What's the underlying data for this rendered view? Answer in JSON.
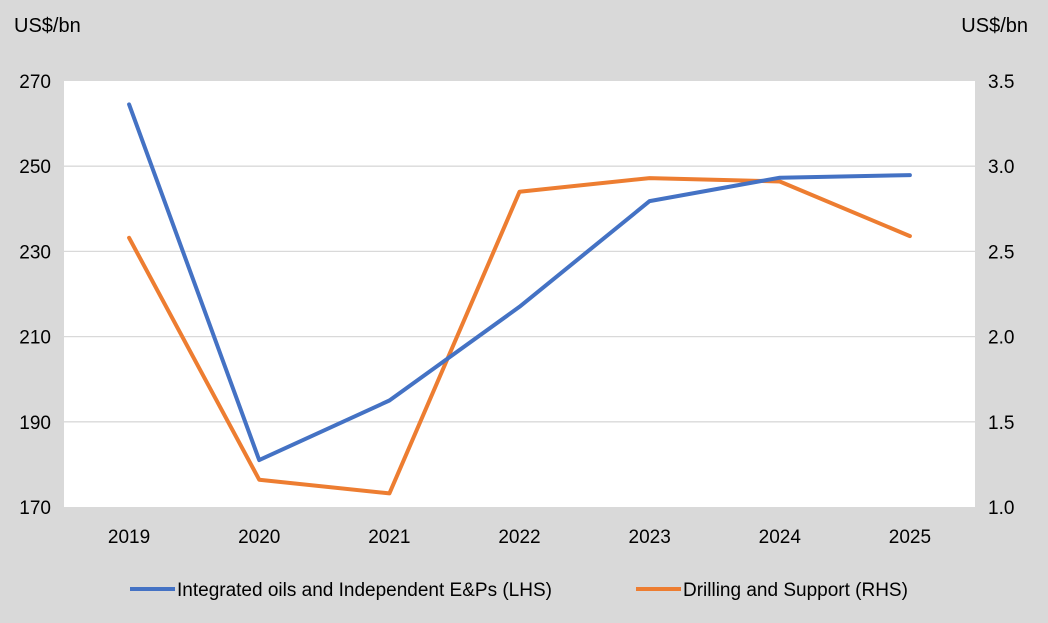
{
  "chart_data": {
    "type": "line",
    "title": "",
    "categories": [
      "2019",
      "2020",
      "2021",
      "2022",
      "2023",
      "2024",
      "2025"
    ],
    "y_left": {
      "unit": "US$/bn",
      "range": [
        170,
        270
      ],
      "ticks": [
        "170",
        "190",
        "210",
        "230",
        "250",
        "270"
      ]
    },
    "y_right": {
      "unit": "US$/bn",
      "range": [
        1.0,
        3.5
      ],
      "ticks": [
        "1.0",
        "1.5",
        "2.0",
        "2.5",
        "3.0",
        "3.5"
      ]
    },
    "series": [
      {
        "name": "Integrated oils and Independent E&Ps (LHS)",
        "axis": "left",
        "color": "#4472c4",
        "values": [
          264.5,
          181,
          195,
          217,
          241.8,
          247.3,
          247.9
        ]
      },
      {
        "name": "Drilling and Support (RHS)",
        "axis": "right",
        "color": "#ed7d31",
        "values": [
          2.58,
          1.16,
          1.08,
          2.85,
          2.93,
          2.91,
          2.59
        ]
      }
    ],
    "grid": true,
    "legend_position": "bottom"
  }
}
